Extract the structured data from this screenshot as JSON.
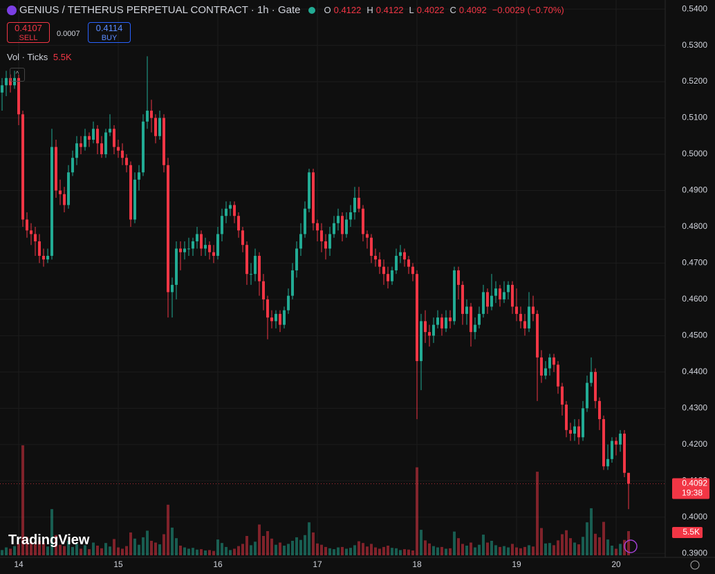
{
  "header": {
    "symbol": "GENIUS / TETHERUS PERPETUAL CONTRACT · 1h · Gate",
    "o_label": "O",
    "o": "0.4122",
    "h_label": "H",
    "h": "0.4122",
    "l_label": "L",
    "l": "0.4022",
    "c_label": "C",
    "c": "0.4092",
    "change": "−0.0029 (−0.70%)",
    "sell_price": "0.4107",
    "sell": "SELL",
    "spread": "0.0007",
    "buy_price": "0.4114",
    "buy": "BUY",
    "vol_title": "Vol · Ticks",
    "vol_value": "5.5K",
    "last_price": "0.4092",
    "countdown": "19:38",
    "brand": "TradingView"
  },
  "chart_data": {
    "type": "candlestick",
    "up_color": "#22ab94",
    "down_color": "#f23645",
    "grid": true,
    "ylim": [
      0.3889,
      0.5425
    ],
    "yticks": [
      {
        "value": 0.54,
        "label": "0.5400"
      },
      {
        "value": 0.53,
        "label": "0.5300"
      },
      {
        "value": 0.52,
        "label": "0.5200"
      },
      {
        "value": 0.51,
        "label": "0.5100"
      },
      {
        "value": 0.5,
        "label": "0.5000"
      },
      {
        "value": 0.49,
        "label": "0.4900"
      },
      {
        "value": 0.48,
        "label": "0.4800"
      },
      {
        "value": 0.47,
        "label": "0.4700"
      },
      {
        "value": 0.46,
        "label": "0.4600"
      },
      {
        "value": 0.45,
        "label": "0.4500"
      },
      {
        "value": 0.44,
        "label": "0.4400"
      },
      {
        "value": 0.43,
        "label": "0.4300"
      },
      {
        "value": 0.42,
        "label": "0.4200"
      },
      {
        "value": 0.41,
        "label": "0.4100"
      },
      {
        "value": 0.4,
        "label": "0.4000"
      },
      {
        "value": 0.39,
        "label": "0.3900"
      }
    ],
    "categories": [
      null,
      null,
      null,
      null,
      "14",
      null,
      null,
      null,
      null,
      null,
      null,
      null,
      null,
      null,
      null,
      null,
      null,
      null,
      null,
      null,
      null,
      null,
      null,
      null,
      null,
      null,
      null,
      null,
      "15",
      null,
      null,
      null,
      null,
      null,
      null,
      null,
      null,
      null,
      null,
      null,
      null,
      null,
      null,
      null,
      null,
      null,
      null,
      null,
      null,
      null,
      null,
      null,
      "16",
      null,
      null,
      null,
      null,
      null,
      null,
      null,
      null,
      null,
      null,
      null,
      null,
      null,
      null,
      null,
      null,
      null,
      null,
      null,
      null,
      null,
      null,
      null,
      "17",
      null,
      null,
      null,
      null,
      null,
      null,
      null,
      null,
      null,
      null,
      null,
      null,
      null,
      null,
      null,
      null,
      null,
      null,
      null,
      null,
      null,
      null,
      null,
      "18",
      null,
      null,
      null,
      null,
      null,
      null,
      null,
      null,
      null,
      null,
      null,
      null,
      null,
      null,
      null,
      null,
      null,
      null,
      null,
      null,
      null,
      null,
      null,
      "19",
      null,
      null,
      null,
      null,
      null,
      null,
      null,
      null,
      null,
      null,
      null,
      null,
      null,
      null,
      null,
      null,
      null,
      null,
      null,
      null,
      null,
      null,
      null,
      "20",
      null,
      null,
      null
    ],
    "candles": [
      [
        0.517,
        0.521,
        0.512,
        0.519
      ],
      [
        0.519,
        0.523,
        0.516,
        0.521
      ],
      [
        0.521,
        0.522,
        0.517,
        0.519
      ],
      [
        0.519,
        0.523,
        0.518,
        0.521
      ],
      [
        0.521,
        0.522,
        0.508,
        0.511
      ],
      [
        0.511,
        0.512,
        0.48,
        0.482
      ],
      [
        0.482,
        0.484,
        0.477,
        0.479
      ],
      [
        0.479,
        0.481,
        0.475,
        0.478
      ],
      [
        0.478,
        0.48,
        0.472,
        0.476
      ],
      [
        0.476,
        0.478,
        0.47,
        0.472
      ],
      [
        0.472,
        0.474,
        0.469,
        0.471
      ],
      [
        0.471,
        0.474,
        0.47,
        0.472
      ],
      [
        0.472,
        0.507,
        0.471,
        0.502
      ],
      [
        0.502,
        0.504,
        0.488,
        0.49
      ],
      [
        0.49,
        0.493,
        0.486,
        0.489
      ],
      [
        0.489,
        0.491,
        0.484,
        0.486
      ],
      [
        0.486,
        0.497,
        0.485,
        0.495
      ],
      [
        0.495,
        0.501,
        0.494,
        0.499
      ],
      [
        0.499,
        0.505,
        0.497,
        0.503
      ],
      [
        0.503,
        0.505,
        0.5,
        0.502
      ],
      [
        0.502,
        0.507,
        0.501,
        0.505
      ],
      [
        0.505,
        0.506,
        0.502,
        0.504
      ],
      [
        0.504,
        0.509,
        0.503,
        0.507
      ],
      [
        0.507,
        0.508,
        0.5,
        0.503
      ],
      [
        0.503,
        0.505,
        0.499,
        0.5
      ],
      [
        0.5,
        0.507,
        0.499,
        0.506
      ],
      [
        0.506,
        0.511,
        0.505,
        0.507
      ],
      [
        0.507,
        0.508,
        0.5,
        0.502
      ],
      [
        0.502,
        0.504,
        0.499,
        0.501
      ],
      [
        0.501,
        0.503,
        0.497,
        0.499
      ],
      [
        0.499,
        0.5,
        0.495,
        0.497
      ],
      [
        0.497,
        0.498,
        0.48,
        0.482
      ],
      [
        0.482,
        0.495,
        0.481,
        0.493
      ],
      [
        0.493,
        0.497,
        0.49,
        0.495
      ],
      [
        0.495,
        0.511,
        0.494,
        0.509
      ],
      [
        0.509,
        0.527,
        0.507,
        0.512
      ],
      [
        0.512,
        0.515,
        0.506,
        0.51
      ],
      [
        0.51,
        0.511,
        0.503,
        0.505
      ],
      [
        0.505,
        0.512,
        0.504,
        0.51
      ],
      [
        0.51,
        0.511,
        0.495,
        0.497
      ],
      [
        0.497,
        0.499,
        0.455,
        0.462
      ],
      [
        0.462,
        0.466,
        0.455,
        0.464
      ],
      [
        0.464,
        0.476,
        0.46,
        0.474
      ],
      [
        0.474,
        0.476,
        0.468,
        0.473
      ],
      [
        0.473,
        0.476,
        0.471,
        0.474
      ],
      [
        0.474,
        0.477,
        0.472,
        0.474
      ],
      [
        0.474,
        0.477,
        0.472,
        0.476
      ],
      [
        0.476,
        0.48,
        0.474,
        0.478
      ],
      [
        0.478,
        0.479,
        0.472,
        0.474
      ],
      [
        0.474,
        0.477,
        0.472,
        0.475
      ],
      [
        0.475,
        0.476,
        0.471,
        0.473
      ],
      [
        0.473,
        0.475,
        0.47,
        0.472
      ],
      [
        0.472,
        0.48,
        0.471,
        0.478
      ],
      [
        0.478,
        0.485,
        0.476,
        0.483
      ],
      [
        0.483,
        0.487,
        0.481,
        0.485
      ],
      [
        0.485,
        0.487,
        0.483,
        0.486
      ],
      [
        0.486,
        0.487,
        0.481,
        0.483
      ],
      [
        0.483,
        0.484,
        0.477,
        0.479
      ],
      [
        0.479,
        0.48,
        0.473,
        0.475
      ],
      [
        0.475,
        0.476,
        0.464,
        0.467
      ],
      [
        0.467,
        0.47,
        0.464,
        0.467
      ],
      [
        0.467,
        0.474,
        0.465,
        0.472
      ],
      [
        0.472,
        0.473,
        0.461,
        0.465
      ],
      [
        0.465,
        0.467,
        0.457,
        0.46
      ],
      [
        0.46,
        0.461,
        0.449,
        0.455
      ],
      [
        0.455,
        0.457,
        0.452,
        0.454
      ],
      [
        0.454,
        0.457,
        0.452,
        0.456
      ],
      [
        0.456,
        0.457,
        0.451,
        0.453
      ],
      [
        0.453,
        0.458,
        0.452,
        0.457
      ],
      [
        0.457,
        0.463,
        0.456,
        0.461
      ],
      [
        0.461,
        0.47,
        0.46,
        0.468
      ],
      [
        0.468,
        0.476,
        0.466,
        0.474
      ],
      [
        0.474,
        0.481,
        0.472,
        0.478
      ],
      [
        0.478,
        0.487,
        0.477,
        0.485
      ],
      [
        0.485,
        0.496,
        0.484,
        0.495
      ],
      [
        0.495,
        0.496,
        0.479,
        0.481
      ],
      [
        0.481,
        0.482,
        0.476,
        0.479
      ],
      [
        0.479,
        0.481,
        0.473,
        0.476
      ],
      [
        0.476,
        0.478,
        0.471,
        0.474
      ],
      [
        0.474,
        0.48,
        0.472,
        0.478
      ],
      [
        0.478,
        0.483,
        0.477,
        0.481
      ],
      [
        0.481,
        0.485,
        0.479,
        0.483
      ],
      [
        0.483,
        0.484,
        0.476,
        0.478
      ],
      [
        0.478,
        0.484,
        0.477,
        0.482
      ],
      [
        0.482,
        0.486,
        0.48,
        0.484
      ],
      [
        0.484,
        0.491,
        0.482,
        0.488
      ],
      [
        0.488,
        0.491,
        0.484,
        0.485
      ],
      [
        0.485,
        0.486,
        0.476,
        0.478
      ],
      [
        0.478,
        0.479,
        0.474,
        0.477
      ],
      [
        0.477,
        0.478,
        0.47,
        0.472
      ],
      [
        0.472,
        0.474,
        0.469,
        0.471
      ],
      [
        0.471,
        0.473,
        0.467,
        0.469
      ],
      [
        0.469,
        0.471,
        0.464,
        0.467
      ],
      [
        0.467,
        0.469,
        0.463,
        0.465
      ],
      [
        0.465,
        0.469,
        0.464,
        0.468
      ],
      [
        0.468,
        0.474,
        0.467,
        0.472
      ],
      [
        0.472,
        0.475,
        0.47,
        0.473
      ],
      [
        0.473,
        0.474,
        0.469,
        0.471
      ],
      [
        0.471,
        0.472,
        0.467,
        0.469
      ],
      [
        0.469,
        0.47,
        0.465,
        0.467
      ],
      [
        0.467,
        0.468,
        0.427,
        0.443
      ],
      [
        0.443,
        0.456,
        0.435,
        0.454
      ],
      [
        0.454,
        0.457,
        0.448,
        0.451
      ],
      [
        0.451,
        0.453,
        0.447,
        0.45
      ],
      [
        0.45,
        0.455,
        0.448,
        0.453
      ],
      [
        0.453,
        0.457,
        0.452,
        0.455
      ],
      [
        0.455,
        0.456,
        0.45,
        0.452
      ],
      [
        0.452,
        0.457,
        0.451,
        0.455
      ],
      [
        0.455,
        0.457,
        0.452,
        0.454
      ],
      [
        0.454,
        0.469,
        0.453,
        0.468
      ],
      [
        0.468,
        0.469,
        0.46,
        0.464
      ],
      [
        0.464,
        0.465,
        0.453,
        0.456
      ],
      [
        0.456,
        0.46,
        0.453,
        0.458
      ],
      [
        0.458,
        0.459,
        0.447,
        0.451
      ],
      [
        0.451,
        0.455,
        0.449,
        0.453
      ],
      [
        0.453,
        0.458,
        0.452,
        0.456
      ],
      [
        0.456,
        0.464,
        0.455,
        0.462
      ],
      [
        0.462,
        0.463,
        0.456,
        0.458
      ],
      [
        0.458,
        0.467,
        0.457,
        0.461
      ],
      [
        0.461,
        0.465,
        0.459,
        0.463
      ],
      [
        0.463,
        0.464,
        0.458,
        0.46
      ],
      [
        0.46,
        0.465,
        0.459,
        0.462
      ],
      [
        0.462,
        0.465,
        0.46,
        0.464
      ],
      [
        0.464,
        0.465,
        0.456,
        0.458
      ],
      [
        0.458,
        0.463,
        0.454,
        0.456
      ],
      [
        0.456,
        0.458,
        0.452,
        0.454
      ],
      [
        0.454,
        0.456,
        0.45,
        0.452
      ],
      [
        0.452,
        0.462,
        0.451,
        0.458
      ],
      [
        0.458,
        0.461,
        0.454,
        0.456
      ],
      [
        0.456,
        0.457,
        0.432,
        0.444
      ],
      [
        0.444,
        0.446,
        0.437,
        0.439
      ],
      [
        0.439,
        0.443,
        0.438,
        0.441
      ],
      [
        0.441,
        0.445,
        0.439,
        0.444
      ],
      [
        0.444,
        0.445,
        0.44,
        0.442
      ],
      [
        0.442,
        0.443,
        0.434,
        0.436
      ],
      [
        0.436,
        0.437,
        0.428,
        0.431
      ],
      [
        0.431,
        0.432,
        0.422,
        0.424
      ],
      [
        0.424,
        0.426,
        0.421,
        0.423
      ],
      [
        0.423,
        0.427,
        0.421,
        0.425
      ],
      [
        0.425,
        0.427,
        0.42,
        0.422
      ],
      [
        0.422,
        0.432,
        0.421,
        0.43
      ],
      [
        0.43,
        0.439,
        0.429,
        0.437
      ],
      [
        0.437,
        0.444,
        0.436,
        0.44
      ],
      [
        0.44,
        0.441,
        0.43,
        0.432
      ],
      [
        0.432,
        0.433,
        0.424,
        0.427
      ],
      [
        0.427,
        0.428,
        0.413,
        0.414
      ],
      [
        0.414,
        0.42,
        0.413,
        0.416
      ],
      [
        0.416,
        0.422,
        0.415,
        0.421
      ],
      [
        0.421,
        0.422,
        0.417,
        0.42
      ],
      [
        0.42,
        0.424,
        0.418,
        0.423
      ],
      [
        0.423,
        0.424,
        0.411,
        0.4122
      ],
      [
        0.4122,
        0.4122,
        0.4022,
        0.4092
      ]
    ],
    "volumes": [
      1200,
      1800,
      1500,
      2100,
      2600,
      25000,
      4200,
      3100,
      2500,
      3300,
      2800,
      2000,
      10500,
      4600,
      2400,
      2100,
      3300,
      1900,
      2600,
      1500,
      2300,
      1400,
      2900,
      2200,
      1600,
      2800,
      2000,
      3700,
      1800,
      1500,
      2100,
      5200,
      3800,
      2400,
      4100,
      5600,
      3300,
      2900,
      2500,
      4800,
      11500,
      6300,
      3900,
      2200,
      1800,
      1500,
      1700,
      1300,
      1400,
      1100,
      1200,
      1000,
      3600,
      2800,
      1900,
      1200,
      1500,
      2100,
      2600,
      4400,
      2300,
      3100,
      7000,
      4400,
      5500,
      3800,
      2400,
      2900,
      2200,
      2600,
      3300,
      4100,
      3500,
      4600,
      7500,
      5200,
      2700,
      2400,
      1900,
      1600,
      1400,
      1800,
      1900,
      1500,
      1700,
      2300,
      3200,
      2800,
      2000,
      2600,
      1800,
      1500,
      1900,
      2200,
      1700,
      1600,
      1200,
      1400,
      1300,
      1100,
      20000,
      5800,
      3400,
      2700,
      2100,
      1800,
      1900,
      1500,
      1600,
      5400,
      3900,
      2600,
      2200,
      2900,
      1800,
      2400,
      4700,
      2900,
      3300,
      2300,
      1900,
      2100,
      1800,
      2600,
      1800,
      1600,
      1900,
      2300,
      2000,
      19000,
      6200,
      2700,
      2800,
      2300,
      3400,
      4800,
      5700,
      3900,
      2900,
      2500,
      4200,
      7500,
      10700,
      4900,
      4100,
      7600,
      3600,
      2200,
      1500,
      2600,
      3500,
      5500
    ]
  }
}
